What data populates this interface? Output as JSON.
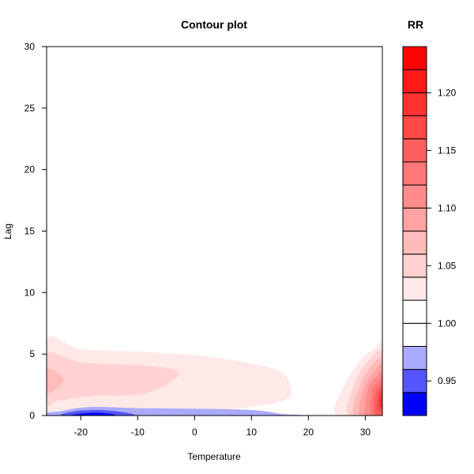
{
  "colors": {
    "blue_strong": "#0000ff",
    "blue_mid": "#5555ff",
    "blue_light": "#aaaaff",
    "white": "#ffffff",
    "red_max": "#ff1a1a"
  },
  "chart_data": {
    "type": "heatmap",
    "subtype": "filled-contour",
    "title": "Contour plot",
    "xlabel": "Temperature",
    "ylabel": "Lag",
    "xlim": [
      -26,
      33
    ],
    "ylim": [
      0,
      30
    ],
    "x_ticks": [
      -20,
      -10,
      0,
      10,
      20,
      30
    ],
    "y_ticks": [
      0,
      5,
      10,
      15,
      20,
      25,
      30
    ],
    "legend": {
      "title": "RR",
      "position": "right",
      "range": [
        0.92,
        1.24
      ],
      "ticks": [
        0.95,
        1.0,
        1.05,
        1.1,
        1.15,
        1.2
      ],
      "levels": [
        {
          "from": 0.92,
          "to": 0.94,
          "color": "#0000ff"
        },
        {
          "from": 0.94,
          "to": 0.96,
          "color": "#5555ff"
        },
        {
          "from": 0.96,
          "to": 0.98,
          "color": "#aaaaff"
        },
        {
          "from": 0.98,
          "to": 1.0,
          "color": "#ffffff"
        },
        {
          "from": 1.0,
          "to": 1.02,
          "color": "#ffffff"
        },
        {
          "from": 1.02,
          "to": 1.04,
          "color": "#ffe8e8"
        },
        {
          "from": 1.04,
          "to": 1.06,
          "color": "#ffd1d1"
        },
        {
          "from": 1.06,
          "to": 1.08,
          "color": "#ffbaba"
        },
        {
          "from": 1.08,
          "to": 1.1,
          "color": "#ffa3a3"
        },
        {
          "from": 1.1,
          "to": 1.12,
          "color": "#ff8c8c"
        },
        {
          "from": 1.12,
          "to": 1.14,
          "color": "#ff7676"
        },
        {
          "from": 1.14,
          "to": 1.16,
          "color": "#ff5f5f"
        },
        {
          "from": 1.16,
          "to": 1.18,
          "color": "#ff4848"
        },
        {
          "from": 1.18,
          "to": 1.2,
          "color": "#ff3131"
        },
        {
          "from": 1.2,
          "to": 1.22,
          "color": "#ff1a1a"
        },
        {
          "from": 1.22,
          "to": 1.24,
          "color": "#ff0303"
        }
      ]
    },
    "regions": [
      {
        "name": "pink-band-1.02",
        "rr": 1.02,
        "color": "#ffe8e8",
        "points": [
          [
            -26,
            6.2
          ],
          [
            -20,
            5.4
          ],
          [
            -10,
            5.2
          ],
          [
            0,
            4.9
          ],
          [
            8,
            4.4
          ],
          [
            15,
            3.6
          ],
          [
            17,
            2.2
          ],
          [
            16,
            1.3
          ],
          [
            10,
            0.7
          ],
          [
            0,
            0.4
          ],
          [
            -15,
            0.6
          ],
          [
            -24,
            0.4
          ],
          [
            -26,
            0.3
          ]
        ]
      },
      {
        "name": "pink-band-1.04",
        "rr": 1.04,
        "color": "#ffd1d1",
        "points": [
          [
            -26,
            5.0
          ],
          [
            -20,
            4.3
          ],
          [
            -10,
            4.1
          ],
          [
            -3,
            3.6
          ],
          [
            -5,
            2.5
          ],
          [
            -10,
            1.7
          ],
          [
            -18,
            1.6
          ],
          [
            -24,
            1.2
          ],
          [
            -26,
            1.0
          ]
        ]
      },
      {
        "name": "pink-band-1.06",
        "rr": 1.06,
        "color": "#ffbaba",
        "points": [
          [
            -26,
            3.8
          ],
          [
            -23,
            2.9
          ],
          [
            -26,
            1.8
          ]
        ]
      },
      {
        "name": "blue-band-0.98",
        "rr": 0.98,
        "color": "#aaaaff",
        "points": [
          [
            -25,
            0
          ],
          [
            -23,
            0.4
          ],
          [
            -18,
            0.7
          ],
          [
            -10,
            0.6
          ],
          [
            0,
            0.55
          ],
          [
            10,
            0.45
          ],
          [
            15,
            0.15
          ],
          [
            16,
            0
          ]
        ]
      },
      {
        "name": "blue-band-0.96",
        "rr": 0.96,
        "color": "#5555ff",
        "points": [
          [
            -23,
            0
          ],
          [
            -21,
            0.35
          ],
          [
            -17,
            0.45
          ],
          [
            -13,
            0.3
          ],
          [
            -11,
            0
          ]
        ]
      },
      {
        "name": "blue-band-0.94",
        "rr": 0.94,
        "color": "#0000ff",
        "points": [
          [
            -21.5,
            0
          ],
          [
            -19,
            0.2
          ],
          [
            -16,
            0.2
          ],
          [
            -14,
            0
          ]
        ]
      },
      {
        "name": "red-band-1.02",
        "rr": 1.02,
        "color": "#ffe8e8",
        "points": [
          [
            25,
            0
          ],
          [
            26,
            2.2
          ],
          [
            29,
            4.4
          ],
          [
            31.5,
            5.4
          ],
          [
            33,
            5.6
          ],
          [
            33,
            0
          ]
        ]
      },
      {
        "name": "red-band-1.04",
        "rr": 1.04,
        "color": "#ffd1d1",
        "points": [
          [
            27,
            0
          ],
          [
            28,
            2.5
          ],
          [
            30.5,
            4.4
          ],
          [
            33,
            5.0
          ],
          [
            33,
            0
          ]
        ]
      },
      {
        "name": "red-band-1.06",
        "rr": 1.06,
        "color": "#ffbaba",
        "points": [
          [
            28,
            0
          ],
          [
            29,
            2.4
          ],
          [
            31,
            4.0
          ],
          [
            33,
            4.4
          ],
          [
            33,
            0
          ]
        ]
      },
      {
        "name": "red-band-1.08",
        "rr": 1.08,
        "color": "#ffa3a3",
        "points": [
          [
            29,
            0
          ],
          [
            29.8,
            2.3
          ],
          [
            31.5,
            3.6
          ],
          [
            33,
            3.9
          ],
          [
            33,
            0
          ]
        ]
      },
      {
        "name": "red-band-1.10",
        "rr": 1.1,
        "color": "#ff8c8c",
        "points": [
          [
            30,
            0
          ],
          [
            30.5,
            2.2
          ],
          [
            32,
            3.2
          ],
          [
            33,
            3.4
          ],
          [
            33,
            0
          ]
        ]
      },
      {
        "name": "red-band-1.12",
        "rr": 1.12,
        "color": "#ff7676",
        "points": [
          [
            31,
            0
          ],
          [
            31.2,
            2.0
          ],
          [
            32.3,
            2.8
          ],
          [
            33,
            2.9
          ],
          [
            33,
            0
          ]
        ]
      },
      {
        "name": "red-band-1.14",
        "rr": 1.14,
        "color": "#ff5f5f",
        "points": [
          [
            31.6,
            0.2
          ],
          [
            31.8,
            1.8
          ],
          [
            32.6,
            2.4
          ],
          [
            33,
            2.5
          ],
          [
            33,
            0.2
          ]
        ]
      },
      {
        "name": "red-band-1.16",
        "rr": 1.16,
        "color": "#ff4848",
        "points": [
          [
            32.1,
            0.5
          ],
          [
            32.2,
            1.6
          ],
          [
            32.8,
            2.1
          ],
          [
            33,
            2.1
          ],
          [
            33,
            0.5
          ]
        ]
      },
      {
        "name": "red-band-1.18",
        "rr": 1.18,
        "color": "#ff3131",
        "points": [
          [
            32.5,
            0.8
          ],
          [
            32.6,
            1.5
          ],
          [
            33,
            1.8
          ],
          [
            33,
            0.8
          ]
        ]
      }
    ]
  }
}
